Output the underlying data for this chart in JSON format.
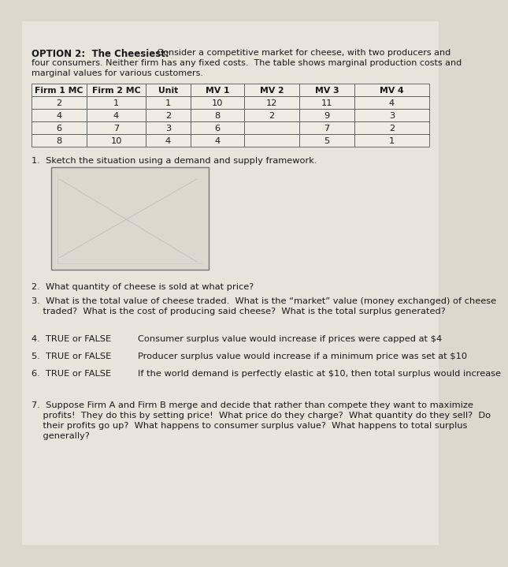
{
  "title_bold": "OPTION 2:  The Cheesiest:",
  "title_line1_rest": " Consider a competitive market for cheese, with two producers and",
  "title_line2": "four consumers. Neither firm has any fixed costs.  The table shows marginal production costs and",
  "title_line3": "marginal values for various customers.",
  "table_headers": [
    "Firm 1 MC",
    "Firm 2 MC",
    "Unit",
    "MV 1",
    "MV 2",
    "MV 3",
    "MV 4"
  ],
  "table_rows": [
    [
      "2",
      "1",
      "1",
      "10",
      "12",
      "11",
      "4"
    ],
    [
      "4",
      "4",
      "2",
      "8",
      "2",
      "9",
      "3"
    ],
    [
      "6",
      "7",
      "3",
      "6",
      "",
      "7",
      "2"
    ],
    [
      "8",
      "10",
      "4",
      "4",
      "",
      "5",
      "1"
    ]
  ],
  "q1": "1.  Sketch the situation using a demand and supply framework.",
  "q2": "2.  What quantity of cheese is sold at what price?",
  "q3_line1": "3.  What is the total value of cheese traded.  What is the “market” value (money exchanged) of cheese",
  "q3_line2": "    traded?  What is the cost of producing said cheese?  What is the total surplus generated?",
  "q4_label": "4.  TRUE or FALSE",
  "q4_text": "Consumer surplus value would increase if prices were capped at $4",
  "q5_label": "5.  TRUE or FALSE",
  "q5_text": "Producer surplus value would increase if a minimum price was set at $10",
  "q6_label": "6.  TRUE or FALSE",
  "q6_text": "If the world demand is perfectly elastic at $10, then total surplus would increase",
  "q7_line1": "7.  Suppose Firm A and Firm B merge and decide that rather than compete they want to maximize",
  "q7_line2": "    profits!  They do this by setting price!  What price do they charge?  What quantity do they sell?  Do",
  "q7_line3": "    their profits go up?  What happens to consumer surplus value?  What happens to total surplus",
  "q7_line4": "    generally?",
  "bg_color": "#ddd8ce",
  "page_color": "#e8e4db",
  "text_color": "#1a1a1a",
  "table_bg": "#f0ece4",
  "table_line_color": "#555555"
}
